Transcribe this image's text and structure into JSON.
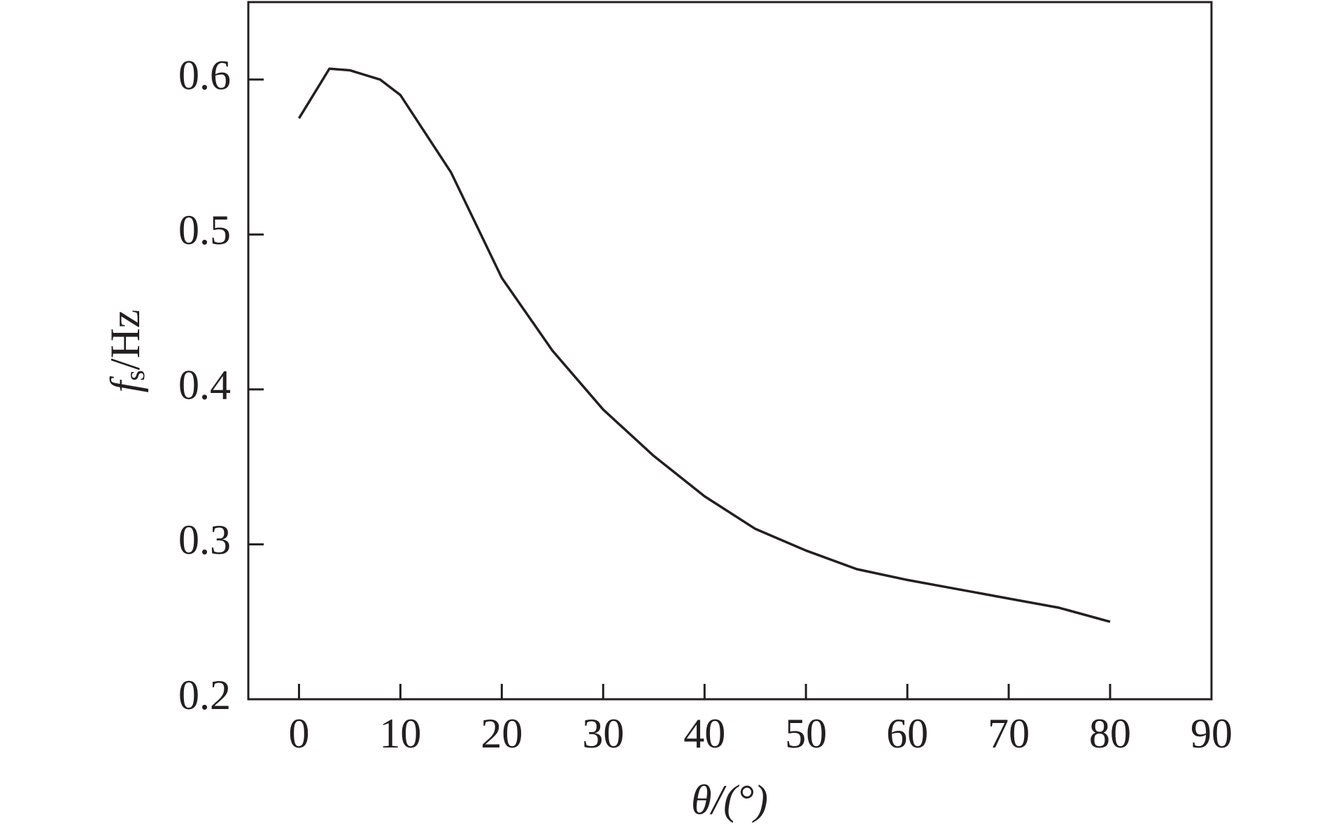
{
  "chart_data": {
    "type": "line",
    "xlabel": "θ/(°)",
    "ylabel": {
      "symbol": "f",
      "subscript": "s",
      "unit": "/Hz"
    },
    "x": [
      0,
      3,
      5,
      8,
      10,
      15,
      20,
      25,
      30,
      35,
      40,
      45,
      50,
      55,
      60,
      65,
      70,
      75,
      80
    ],
    "series": [
      {
        "color": "#231f20",
        "values": [
          0.575,
          0.607,
          0.606,
          0.6,
          0.59,
          0.54,
          0.472,
          0.425,
          0.387,
          0.357,
          0.331,
          0.31,
          0.296,
          0.284,
          0.277,
          0.271,
          0.265,
          0.259,
          0.25
        ]
      }
    ],
    "xlim": [
      -5,
      90
    ],
    "ylim": [
      0.2,
      0.65
    ],
    "xticks": [
      0,
      10,
      20,
      30,
      40,
      50,
      60,
      70,
      80,
      90
    ],
    "yticks": [
      0.2,
      0.3,
      0.4,
      0.5,
      0.6
    ]
  }
}
